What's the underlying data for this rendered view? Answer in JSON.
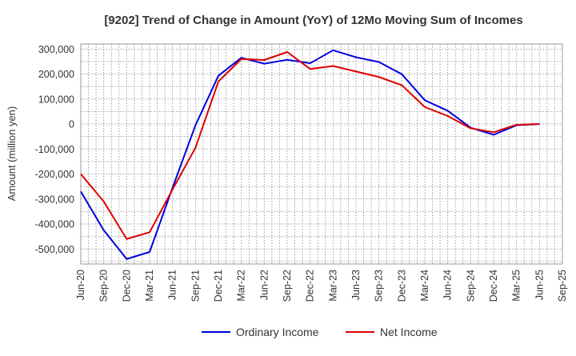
{
  "chart_data": {
    "type": "line",
    "title": "[9202]  Trend of Change in Amount (YoY) of 12Mo Moving Sum of Incomes",
    "ylabel": "Amount (million yen)",
    "xlabel": "",
    "ylim": [
      -560000,
      320000
    ],
    "grid": true,
    "legend_position": "bottom",
    "y_ticks": [
      300000,
      200000,
      100000,
      0,
      -100000,
      -200000,
      -300000,
      -400000,
      -500000
    ],
    "y_tick_labels": [
      "300,000",
      "200,000",
      "100,000",
      "0",
      "-100,000",
      "-200,000",
      "-300,000",
      "-400,000",
      "-500,000"
    ],
    "x_tick_labels": [
      "Jun-20",
      "Sep-20",
      "Dec-20",
      "Mar-21",
      "Jun-21",
      "Sep-21",
      "Dec-21",
      "Mar-22",
      "Jun-22",
      "Sep-22",
      "Dec-22",
      "Mar-23",
      "Jun-23",
      "Sep-23",
      "Dec-23",
      "Mar-24",
      "Jun-24",
      "Sep-24",
      "Dec-24",
      "Mar-25",
      "Jun-25",
      "Sep-25"
    ],
    "categories": [
      "Jun-20",
      "Sep-20",
      "Dec-20",
      "Mar-21",
      "Jun-21",
      "Sep-21",
      "Dec-21",
      "Mar-22",
      "Jun-22",
      "Sep-22",
      "Dec-22",
      "Mar-23",
      "Jun-23",
      "Sep-23",
      "Dec-23",
      "Mar-24",
      "Jun-24",
      "Sep-24",
      "Dec-24",
      "Mar-25",
      "Jun-25"
    ],
    "series": [
      {
        "name": "Ordinary Income",
        "color": "#0000dd",
        "values": [
          -270000,
          -425000,
          -540000,
          -512000,
          -255000,
          -5000,
          193000,
          265000,
          241000,
          257000,
          243000,
          295000,
          267000,
          248000,
          199000,
          95000,
          53000,
          -15000,
          -43000,
          -5000,
          0
        ]
      },
      {
        "name": "Net Income",
        "color": "#dd0000",
        "values": [
          -200000,
          -310000,
          -460000,
          -433000,
          -262000,
          -95000,
          170000,
          260000,
          256000,
          288000,
          220000,
          232000,
          210000,
          188000,
          155000,
          68000,
          32000,
          -17000,
          -33000,
          -3000,
          0
        ]
      }
    ]
  }
}
